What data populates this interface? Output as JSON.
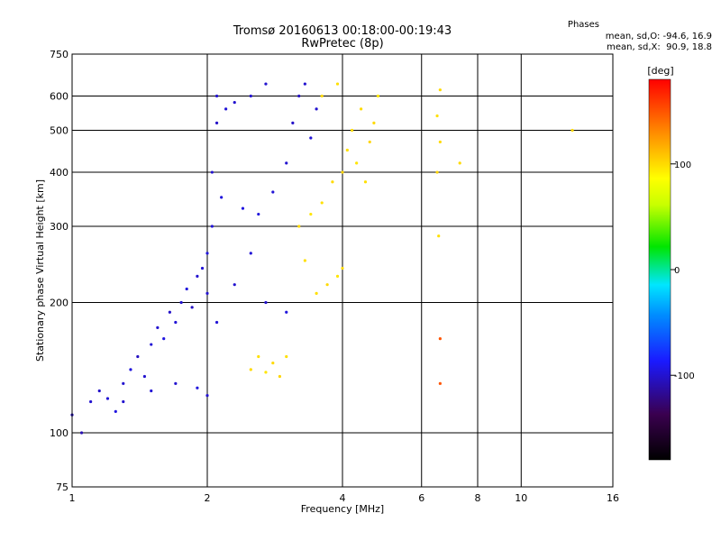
{
  "header": {
    "title": "Tromsø 20160613 00:18:00-00:19:43",
    "subtitle": "RwPretec (8p)",
    "stats_title": "Phases",
    "stats_o": "mean, sd,O: -94.6, 16.9",
    "stats_x": "mean, sd,X:  90.9, 18.8"
  },
  "chart_data": {
    "type": "scatter",
    "title": "Tromsø 20160613 00:18:00-00:19:43",
    "subtitle": "RwPretec (8p)",
    "xlabel": "Frequency [MHz]",
    "ylabel": "Stationary phase Virtual Height [km]",
    "x_scale": "log",
    "y_scale": "log",
    "xlim": [
      1,
      16
    ],
    "ylim": [
      75,
      750
    ],
    "x_ticks": [
      1,
      2,
      4,
      6,
      8,
      10,
      16
    ],
    "y_ticks": [
      75,
      100,
      200,
      300,
      400,
      500,
      600,
      750
    ],
    "grid": true,
    "colorbar": {
      "label": "[deg]",
      "range": [
        -180,
        180
      ],
      "ticks": [
        -100,
        0,
        100
      ]
    },
    "series": [
      {
        "points": [
          [
            1.0,
            110,
            -105
          ],
          [
            1.05,
            100,
            -108
          ],
          [
            1.1,
            118,
            -100
          ],
          [
            1.15,
            125,
            -102
          ],
          [
            1.2,
            120,
            -98
          ],
          [
            1.25,
            112,
            -95
          ],
          [
            1.3,
            130,
            -100
          ],
          [
            1.35,
            140,
            -96
          ],
          [
            1.4,
            150,
            -104
          ],
          [
            1.45,
            135,
            -100
          ],
          [
            1.5,
            160,
            -98
          ],
          [
            1.55,
            175,
            -100
          ],
          [
            1.6,
            165,
            -95
          ],
          [
            1.65,
            190,
            -102
          ],
          [
            1.7,
            180,
            -98
          ],
          [
            1.75,
            200,
            -100
          ],
          [
            1.8,
            215,
            -96
          ],
          [
            1.85,
            195,
            -104
          ],
          [
            1.9,
            230,
            -100
          ],
          [
            1.95,
            240,
            -98
          ],
          [
            2.0,
            210,
            -100
          ],
          [
            2.0,
            260,
            -96
          ],
          [
            2.05,
            300,
            -98
          ],
          [
            2.05,
            400,
            -100
          ],
          [
            2.1,
            520,
            -102
          ],
          [
            2.1,
            600,
            -100
          ],
          [
            2.15,
            350,
            -96
          ],
          [
            2.2,
            560,
            -98
          ],
          [
            2.3,
            580,
            -100
          ],
          [
            2.4,
            330,
            -95
          ],
          [
            2.5,
            600,
            -100
          ],
          [
            2.6,
            320,
            -96
          ],
          [
            2.7,
            640,
            -100
          ],
          [
            2.8,
            360,
            -98
          ],
          [
            3.0,
            420,
            -100
          ],
          [
            3.1,
            520,
            -102
          ],
          [
            3.2,
            600,
            -104
          ],
          [
            3.3,
            640,
            -100
          ],
          [
            3.4,
            480,
            -98
          ],
          [
            3.5,
            560,
            -100
          ],
          [
            1.3,
            118,
            -100
          ],
          [
            1.5,
            125,
            -98
          ],
          [
            1.7,
            130,
            -100
          ],
          [
            1.9,
            127,
            -96
          ],
          [
            2.0,
            122,
            -100
          ],
          [
            2.1,
            180,
            -98
          ],
          [
            2.3,
            220,
            -100
          ],
          [
            2.5,
            260,
            -98
          ],
          [
            2.7,
            200,
            -100
          ],
          [
            3.0,
            190,
            -96
          ]
        ]
      },
      {
        "points": [
          [
            2.5,
            140,
            100
          ],
          [
            2.6,
            150,
            98
          ],
          [
            2.7,
            138,
            96
          ],
          [
            2.8,
            145,
            100
          ],
          [
            2.9,
            135,
            102
          ],
          [
            3.0,
            150,
            98
          ],
          [
            3.2,
            300,
            100
          ],
          [
            3.4,
            320,
            96
          ],
          [
            3.6,
            340,
            98
          ],
          [
            3.8,
            380,
            100
          ],
          [
            4.0,
            400,
            102
          ],
          [
            4.1,
            450,
            98
          ],
          [
            4.2,
            500,
            100
          ],
          [
            4.3,
            420,
            96
          ],
          [
            4.4,
            560,
            100
          ],
          [
            4.5,
            380,
            98
          ],
          [
            4.6,
            470,
            102
          ],
          [
            4.7,
            520,
            100
          ],
          [
            3.5,
            210,
            98
          ],
          [
            3.7,
            220,
            100
          ],
          [
            3.9,
            230,
            96
          ],
          [
            4.0,
            240,
            100
          ],
          [
            3.3,
            250,
            98
          ],
          [
            3.6,
            600,
            100
          ],
          [
            3.9,
            640,
            98
          ],
          [
            4.8,
            600,
            96
          ],
          [
            6.6,
            620,
            100
          ],
          [
            6.5,
            540,
            98
          ],
          [
            6.6,
            470,
            100
          ],
          [
            6.5,
            400,
            102
          ],
          [
            6.55,
            285,
            98
          ],
          [
            6.6,
            165,
            150
          ],
          [
            6.6,
            130,
            150
          ],
          [
            7.3,
            420,
            100
          ],
          [
            13.0,
            500,
            100
          ]
        ]
      }
    ]
  }
}
